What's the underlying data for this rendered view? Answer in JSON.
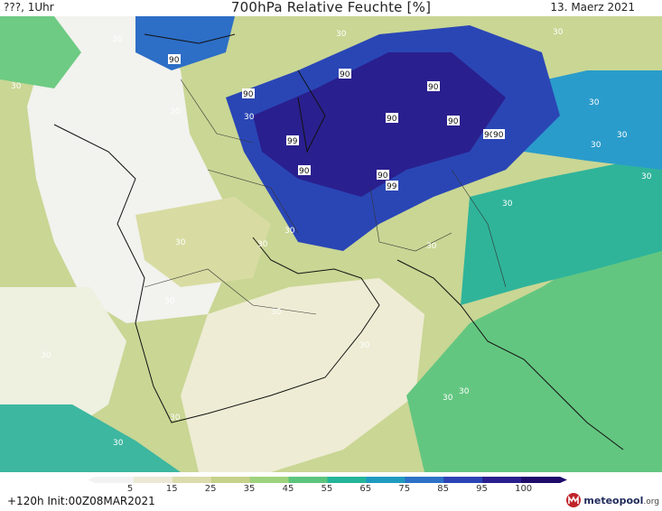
{
  "header": {
    "left": "???, 1Uhr",
    "center": "700hPa Relative Feuchte [%]",
    "right": "13. Maerz 2021"
  },
  "footer": {
    "run_info": "+120h  Init:00Z08MAR2021",
    "logo_main": "meteopool",
    "logo_suffix": ".org"
  },
  "legend": {
    "ticks": [
      "5",
      "15",
      "25",
      "35",
      "45",
      "55",
      "65",
      "75",
      "85",
      "95",
      "100"
    ],
    "colors": [
      "#f2f2f2",
      "#ebe9d6",
      "#dbdcab",
      "#c6d18a",
      "#9fd27d",
      "#5cc47c",
      "#25b59a",
      "#209bc0",
      "#2d72c7",
      "#2b43b4",
      "#2a1f8e",
      "#1e0b6a"
    ]
  },
  "map": {
    "contour_labels": [
      "30",
      "30",
      "30",
      "30",
      "30",
      "30",
      "30",
      "30",
      "30",
      "30",
      "30",
      "30",
      "30",
      "30",
      "30",
      "30",
      "30",
      "30",
      "30",
      "90",
      "90",
      "90",
      "90",
      "90",
      "90",
      "90",
      "90",
      "90",
      "99",
      "99",
      "90",
      "30",
      "30",
      "30",
      "30"
    ]
  }
}
